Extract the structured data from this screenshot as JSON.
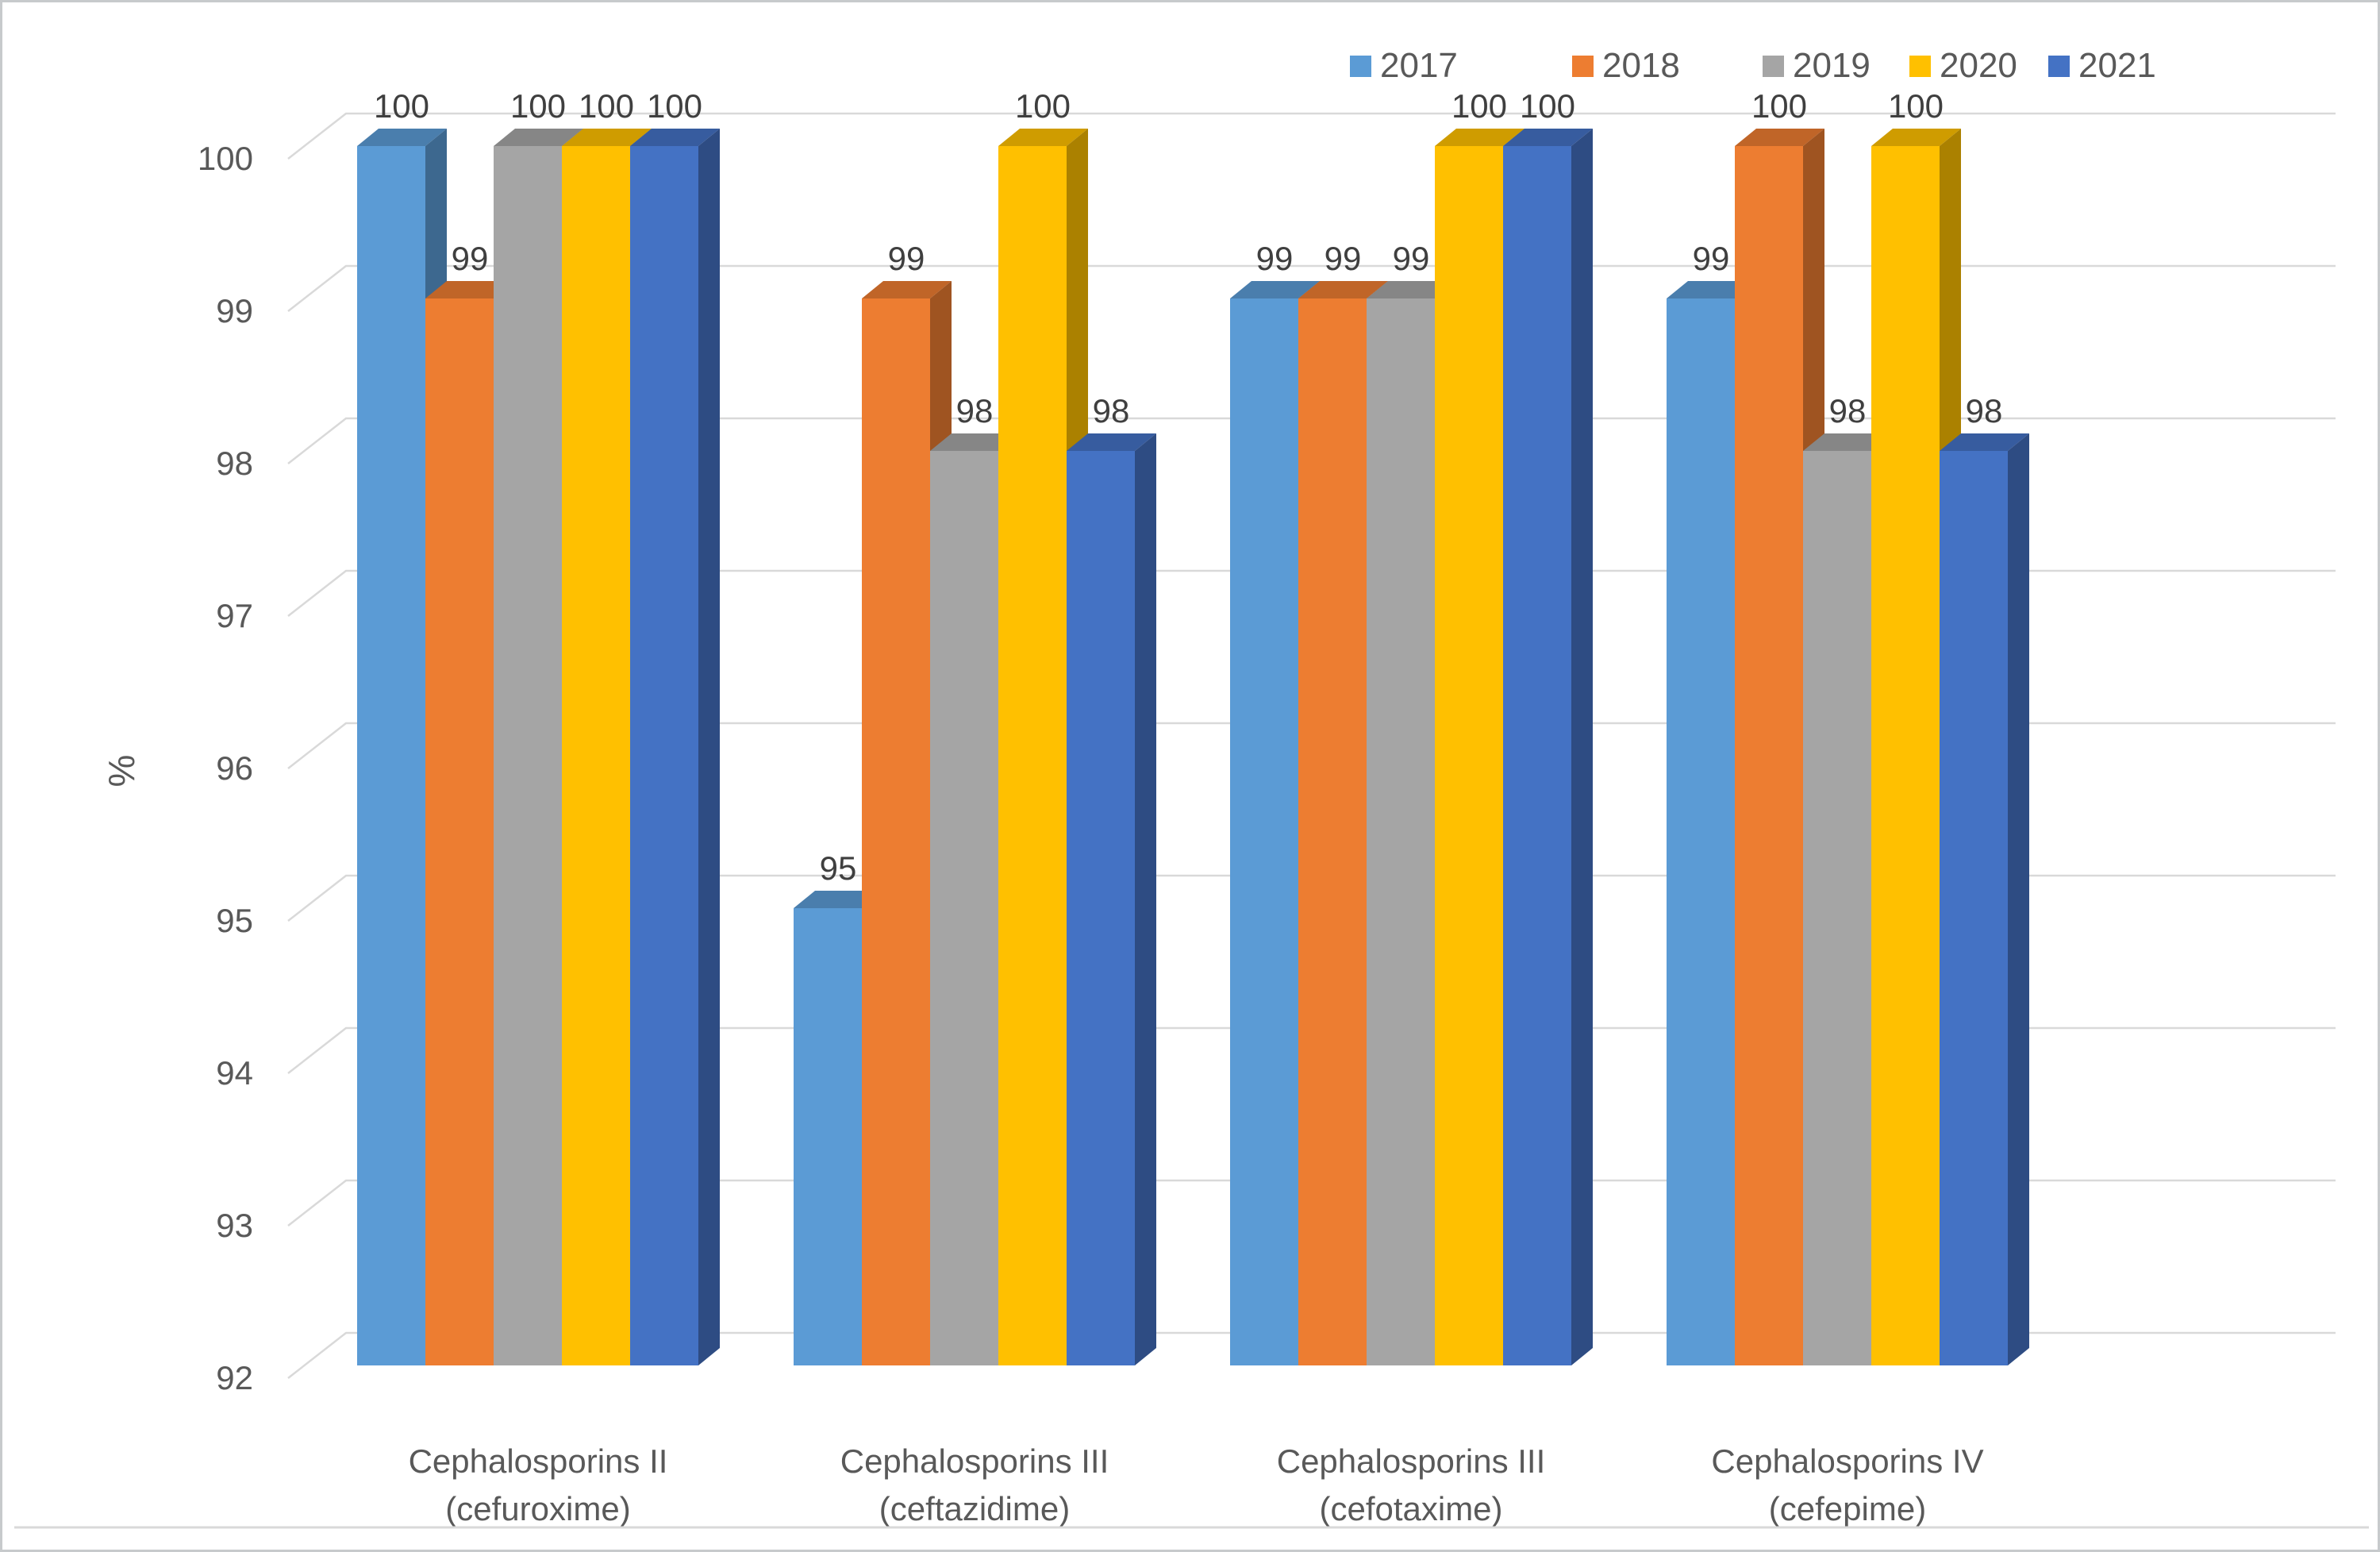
{
  "chart_data": {
    "type": "bar",
    "variant": "3d-clustered-column",
    "title": "",
    "xlabel": "",
    "ylabel": "%",
    "ylim": [
      92,
      100
    ],
    "ytick_step": 1,
    "ytick_labels": [
      "92",
      "93",
      "94",
      "95",
      "96",
      "97",
      "98",
      "99",
      "100"
    ],
    "grid": true,
    "data_labels": true,
    "legend_position": "top-right",
    "categories": [
      "Cephalosporins II (cefuroxime)",
      "Cephalosporins III (ceftazidime)",
      "Cephalosporins III (cefotaxime)",
      "Cephalosporins IV (cefepime)"
    ],
    "series": [
      {
        "name": "2017",
        "color": "#5B9BD5",
        "values": [
          100,
          95,
          99,
          99
        ]
      },
      {
        "name": "2018",
        "color": "#ED7D31",
        "values": [
          99,
          99,
          99,
          100
        ]
      },
      {
        "name": "2019",
        "color": "#A5A5A5",
        "values": [
          100,
          98,
          99,
          98
        ]
      },
      {
        "name": "2020",
        "color": "#FFC000",
        "values": [
          100,
          100,
          100,
          100
        ]
      },
      {
        "name": "2021",
        "color": "#4472C4",
        "values": [
          100,
          98,
          100,
          98
        ]
      }
    ]
  },
  "style_colors": {
    "gridline": "#d9d9d9",
    "axis_text": "#595959",
    "data_label_text": "#3f3f3f",
    "border": "#c7cacc"
  }
}
